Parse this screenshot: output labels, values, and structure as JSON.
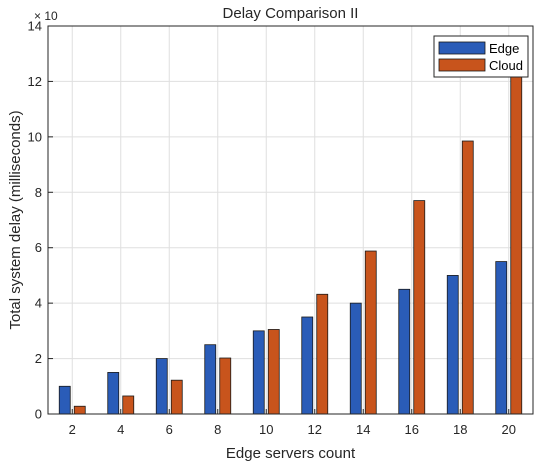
{
  "chart_data": {
    "type": "bar",
    "title": "Delay Comparison II",
    "xlabel": "Edge servers count",
    "ylabel": "Total system delay (milliseconds)",
    "y_multiplier": "× 10",
    "categories": [
      "2",
      "4",
      "6",
      "8",
      "10",
      "12",
      "14",
      "16",
      "18",
      "20"
    ],
    "series": [
      {
        "name": "Edge",
        "color": "#2a5cb8",
        "values": [
          1.0,
          1.5,
          2.0,
          2.5,
          3.0,
          3.5,
          4.0,
          4.5,
          5.0,
          5.5
        ]
      },
      {
        "name": "Cloud",
        "color": "#c8541c",
        "values": [
          0.28,
          0.65,
          1.22,
          2.02,
          3.05,
          4.32,
          5.88,
          7.7,
          9.85,
          12.4
        ]
      }
    ],
    "ylim": [
      0,
      14
    ],
    "yticks": [
      "0",
      "2",
      "4",
      "6",
      "8",
      "10",
      "12",
      "14"
    ],
    "grid": true,
    "legend_position": "top-right"
  }
}
